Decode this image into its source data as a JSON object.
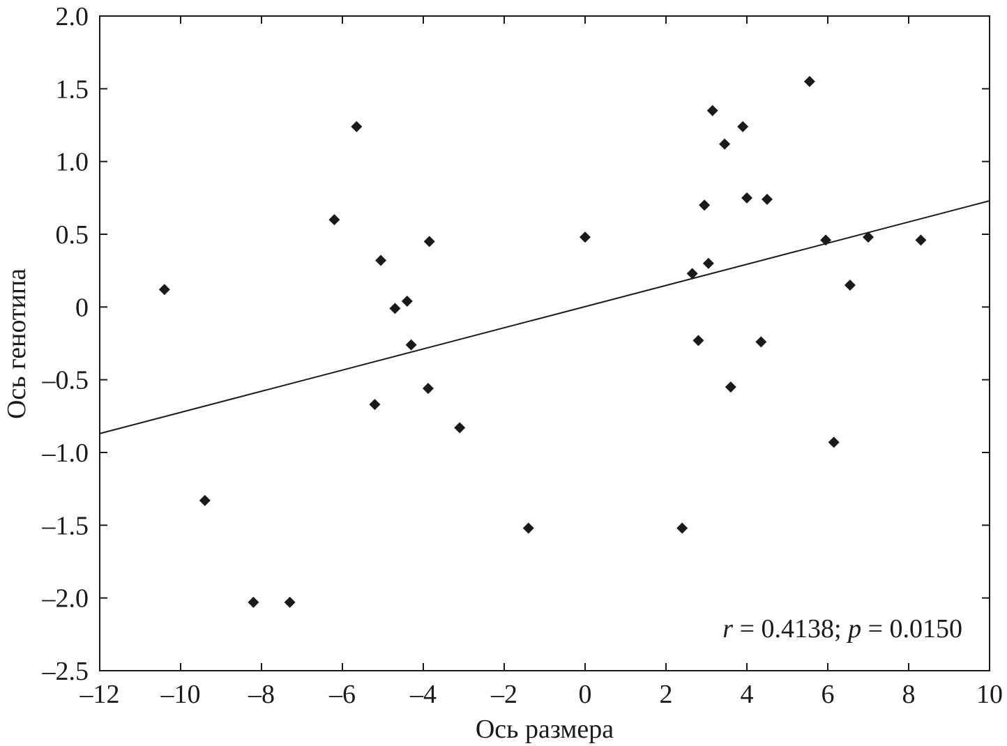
{
  "chart_data": {
    "type": "scatter",
    "xlabel": "Ось размера",
    "ylabel": "Ось генотипа",
    "xlim": [
      -12,
      10
    ],
    "ylim": [
      -2.5,
      2.0
    ],
    "x_ticks": [
      -12,
      -10,
      -8,
      -6,
      -4,
      -2,
      0,
      2,
      4,
      6,
      8,
      10
    ],
    "x_tick_labels": [
      "–12",
      "–10",
      "–8",
      "–6",
      "–4",
      "–2",
      "0",
      "2",
      "4",
      "6",
      "8",
      "10"
    ],
    "y_ticks": [
      2.0,
      1.5,
      1.0,
      0.5,
      0,
      -0.5,
      -1.0,
      -1.5,
      -2.0,
      -2.5
    ],
    "y_tick_labels": [
      "2.0",
      "1.5",
      "1.0",
      "0.5",
      "0",
      "–0.5",
      "–1.0",
      "–1.5",
      "–2.0",
      "–2.5"
    ],
    "grid": false,
    "points": [
      {
        "x": -10.4,
        "y": 0.12
      },
      {
        "x": -9.4,
        "y": -1.33
      },
      {
        "x": -8.2,
        "y": -2.03
      },
      {
        "x": -7.3,
        "y": -2.03
      },
      {
        "x": -6.2,
        "y": 0.6
      },
      {
        "x": -5.65,
        "y": 1.24
      },
      {
        "x": -5.2,
        "y": -0.67
      },
      {
        "x": -5.05,
        "y": 0.32
      },
      {
        "x": -4.7,
        "y": -0.01
      },
      {
        "x": -4.4,
        "y": 0.04
      },
      {
        "x": -4.3,
        "y": -0.26
      },
      {
        "x": -3.88,
        "y": -0.56
      },
      {
        "x": -3.85,
        "y": 0.45
      },
      {
        "x": -3.1,
        "y": -0.83
      },
      {
        "x": -1.4,
        "y": -1.52
      },
      {
        "x": 0.0,
        "y": 0.48
      },
      {
        "x": 2.4,
        "y": -1.52
      },
      {
        "x": 2.65,
        "y": 0.23
      },
      {
        "x": 2.8,
        "y": -0.23
      },
      {
        "x": 2.95,
        "y": 0.7
      },
      {
        "x": 3.05,
        "y": 0.3
      },
      {
        "x": 3.15,
        "y": 1.35
      },
      {
        "x": 3.45,
        "y": 1.12
      },
      {
        "x": 3.6,
        "y": -0.55
      },
      {
        "x": 3.9,
        "y": 1.24
      },
      {
        "x": 4.0,
        "y": 0.75
      },
      {
        "x": 4.35,
        "y": -0.24
      },
      {
        "x": 4.5,
        "y": 0.74
      },
      {
        "x": 5.55,
        "y": 1.55
      },
      {
        "x": 5.95,
        "y": 0.46
      },
      {
        "x": 6.15,
        "y": -0.93
      },
      {
        "x": 6.55,
        "y": 0.15
      },
      {
        "x": 7.0,
        "y": 0.48
      },
      {
        "x": 8.3,
        "y": 0.46
      }
    ],
    "trendline": {
      "x": [
        -12,
        10
      ],
      "y": [
        -0.87,
        0.73
      ]
    },
    "annotation": {
      "r_symbol": "r",
      "r_text": " = 0.4138; ",
      "p_symbol": "p",
      "p_text": " = 0.0150"
    }
  }
}
